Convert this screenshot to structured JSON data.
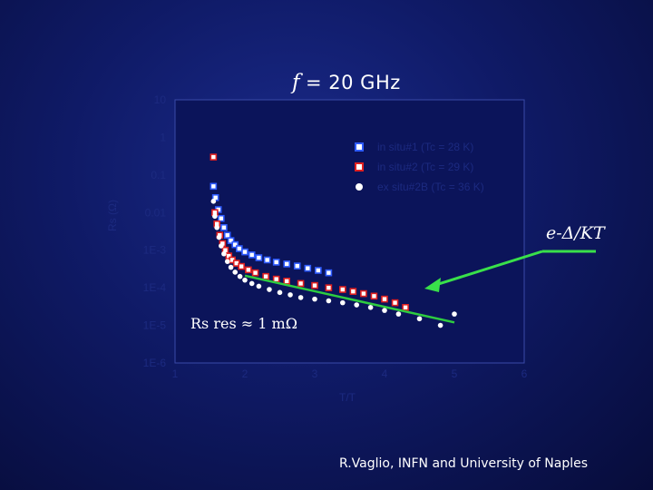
{
  "title": {
    "symbol": "f",
    "rest": "= 20 GHz"
  },
  "annotations": {
    "fit_label": "e-Δ/KT",
    "rres_label": "Rs res ≈ 1 mΩ",
    "credit": "R.Vaglio, INFN and University of Naples"
  },
  "colors": {
    "background": "#0f1a66",
    "series1": "#2e5bff",
    "series2": "#e02020",
    "series3": "#ffffff",
    "fit_line": "#2ecc40",
    "arrow": "#39e04a",
    "axis": "#1c2a80"
  },
  "chart_data": {
    "type": "scatter",
    "title": "f = 20 GHz",
    "xlabel": "T/T",
    "ylabel": "Rs (Ω)",
    "xlim": [
      1,
      6
    ],
    "ylog": true,
    "ylim": [
      1e-06,
      10
    ],
    "x_ticks": [
      "1",
      "2",
      "3",
      "4",
      "5",
      "6"
    ],
    "y_ticks": [
      "10",
      "1",
      "0.1",
      "0.01",
      "1E-3",
      "1E-4",
      "1E-5",
      "1E-6"
    ],
    "legend_placement": "top-right",
    "series": [
      {
        "name": "in situ#1 (Tc = 28 K)",
        "marker": "square",
        "x": [
          1.55,
          1.58,
          1.62,
          1.66,
          1.7,
          1.75,
          1.8,
          1.86,
          1.92,
          2.0,
          2.1,
          2.2,
          2.32,
          2.45,
          2.6,
          2.75,
          2.9,
          3.05,
          3.2
        ],
        "y": [
          0.05,
          0.025,
          0.012,
          0.007,
          0.004,
          0.0025,
          0.0018,
          0.0014,
          0.0011,
          0.0009,
          0.00075,
          0.00063,
          0.00055,
          0.00048,
          0.00043,
          0.00038,
          0.00033,
          0.00029,
          0.00025
        ]
      },
      {
        "name": "in situ#2 (Tc = 29 K)",
        "marker": "square",
        "x": [
          1.55,
          1.57,
          1.6,
          1.64,
          1.68,
          1.72,
          1.77,
          1.82,
          1.88,
          1.95,
          2.05,
          2.15,
          2.3,
          2.45,
          2.6,
          2.8,
          3.0,
          3.2,
          3.4,
          3.55,
          3.7,
          3.85,
          4.0,
          4.15,
          4.3
        ],
        "y": [
          0.3,
          0.01,
          0.005,
          0.0025,
          0.0015,
          0.001,
          0.0007,
          0.00055,
          0.00045,
          0.00037,
          0.0003,
          0.00025,
          0.0002,
          0.00017,
          0.00015,
          0.00013,
          0.000115,
          0.0001,
          9e-05,
          8e-05,
          7e-05,
          6e-05,
          5e-05,
          4e-05,
          3e-05
        ]
      },
      {
        "name": "ex situ#2B (Tc = 36 K)",
        "marker": "circle",
        "x": [
          1.55,
          1.57,
          1.6,
          1.63,
          1.66,
          1.7,
          1.75,
          1.8,
          1.86,
          1.93,
          2.0,
          2.1,
          2.2,
          2.35,
          2.5,
          2.65,
          2.8,
          3.0,
          3.2,
          3.4,
          3.6,
          3.8,
          4.0,
          4.2,
          4.5,
          4.8,
          5.0
        ],
        "y": [
          0.02,
          0.008,
          0.004,
          0.0022,
          0.0013,
          0.0008,
          0.0005,
          0.00035,
          0.00026,
          0.0002,
          0.00016,
          0.00013,
          0.00011,
          9e-05,
          7.5e-05,
          6.5e-05,
          5.5e-05,
          5e-05,
          4.5e-05,
          4e-05,
          3.5e-05,
          3e-05,
          2.5e-05,
          2e-05,
          1.5e-05,
          1e-05,
          2e-05
        ]
      }
    ],
    "fit_line": {
      "x": [
        2.0,
        5.0
      ],
      "y": [
        0.00021,
        1.2e-05
      ]
    }
  }
}
